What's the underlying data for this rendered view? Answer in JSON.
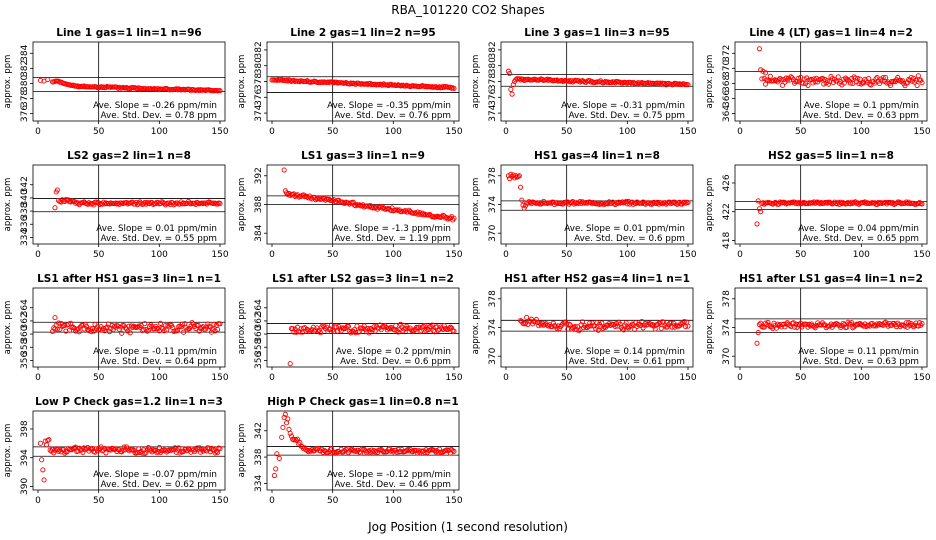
{
  "title": "RBA_101220  CO2 Shapes",
  "xlabel": "Jog Position (1 second resolution)",
  "ylabel": "approx. ppm",
  "colors": {
    "points": "#ff0000",
    "axes": "#000000",
    "background": "#ffffff"
  },
  "chart_data": [
    {
      "type": "scatter",
      "title": "Line 1 gas=1 lin=1 n=96",
      "xlim": [
        0,
        150
      ],
      "ylim": [
        375,
        385.5
      ],
      "yticks": [
        376,
        378,
        380,
        382,
        384
      ],
      "xticks": [
        0,
        50,
        100,
        150
      ],
      "hlines": [
        380.8,
        378.9
      ],
      "vline": 50,
      "slope": "Ave. Slope = -0.26 ppm/min",
      "stddev": "Ave. Std. Dev. = 0.78 ppm",
      "shape": {
        "start": 12,
        "x0": 0,
        "n": 150,
        "base": 379.7,
        "end": 379.0,
        "peak": 0.6,
        "peakAt": 16,
        "peakW": 8,
        "noise": 0.08,
        "lead": [
          [
            2,
            380.4
          ],
          [
            5,
            380.3
          ],
          [
            8,
            380.5
          ]
        ]
      }
    },
    {
      "type": "scatter",
      "title": "Line 2 gas=1 lin=2 n=95",
      "xlim": [
        0,
        150
      ],
      "ylim": [
        373,
        383
      ],
      "yticks": [
        374,
        376,
        378,
        380,
        382
      ],
      "xticks": [
        0,
        50,
        100,
        150
      ],
      "hlines": [
        378.6,
        376.6
      ],
      "vline": 50,
      "slope": "Ave. Slope = -0.35 ppm/min",
      "stddev": "Ave. Std. Dev. = 0.76 ppm",
      "shape": {
        "start": 0,
        "x0": 0,
        "n": 150,
        "base": 378.2,
        "end": 377.2,
        "peak": 0,
        "peakAt": 0,
        "peakW": 1,
        "noise": 0.08,
        "lead": []
      }
    },
    {
      "type": "scatter",
      "title": "Line 3 gas=1 lin=3 n=95",
      "xlim": [
        0,
        150
      ],
      "ylim": [
        373,
        383
      ],
      "yticks": [
        374,
        376,
        378,
        380,
        382
      ],
      "xticks": [
        0,
        50,
        100,
        150
      ],
      "hlines": [
        378.9,
        377.4
      ],
      "vline": 50,
      "slope": "Ave. Slope = -0.31 ppm/min",
      "stddev": "Ave. Std. Dev. = 0.75 ppm",
      "shape": {
        "start": 8,
        "x0": 0,
        "n": 150,
        "base": 378.3,
        "end": 377.6,
        "peak": 0,
        "peakAt": 0,
        "peakW": 1,
        "noise": 0.1,
        "lead": [
          [
            2,
            379.3
          ],
          [
            3,
            379.0
          ],
          [
            4,
            377.0
          ],
          [
            5,
            376.4
          ],
          [
            6,
            377.6
          ],
          [
            7,
            378.0
          ]
        ]
      }
    },
    {
      "type": "scatter",
      "title": "Line 4 (LT) gas=1 lin=4 n=2",
      "xlim": [
        0,
        150
      ],
      "ylim": [
        363,
        373.5
      ],
      "yticks": [
        364,
        366,
        368,
        370,
        372
      ],
      "xticks": [
        0,
        50,
        100,
        150
      ],
      "hlines": [
        369.6,
        367.2
      ],
      "vline": 50,
      "slope": "Ave. Slope = 0.1 ppm/min",
      "stddev": "Ave. Std. Dev. = 0.63 ppm",
      "shape": {
        "start": 20,
        "x0": 0,
        "n": 150,
        "base": 368.4,
        "end": 368.3,
        "peak": 0,
        "peakAt": 0,
        "peakW": 1,
        "noise": 0.45,
        "lead": [
          [
            16,
            372.6
          ],
          [
            17,
            369.8
          ],
          [
            18,
            368.6
          ],
          [
            19,
            369.6
          ],
          [
            21,
            369.4
          ]
        ]
      }
    },
    {
      "type": "scatter",
      "title": "LS2 gas=2 lin=1 n=8",
      "xlim": [
        0,
        150
      ],
      "ylim": [
        333,
        345
      ],
      "yticks": [
        334,
        336,
        338,
        340,
        342
      ],
      "xticks": [
        0,
        50,
        100,
        150
      ],
      "hlines": [
        339.9,
        337.9
      ],
      "vline": 50,
      "slope": "Ave. Slope = 0.01 ppm/min",
      "stddev": "Ave. Std. Dev. = 0.55 ppm",
      "shape": {
        "start": 18,
        "x0": 0,
        "n": 150,
        "base": 339.2,
        "end": 339.2,
        "peak": 0.4,
        "peakAt": 22,
        "peakW": 6,
        "noise": 0.18,
        "lead": [
          [
            14,
            338.5
          ],
          [
            15,
            340.9
          ],
          [
            16,
            341.2
          ],
          [
            17,
            339.6
          ]
        ]
      }
    },
    {
      "type": "scatter",
      "title": "LS1 gas=3 lin=1 n=9",
      "xlim": [
        0,
        150
      ],
      "ylim": [
        382.5,
        393.5
      ],
      "yticks": [
        384,
        388,
        392
      ],
      "xticks": [
        0,
        50,
        100,
        150
      ],
      "hlines": [
        389.2,
        388.0
      ],
      "vline": 50,
      "slope": "Ave. Slope = -1.3 ppm/min",
      "stddev": "Ave. Std. Dev. = 1.19 ppm",
      "shape": {
        "start": 12,
        "x0": 0,
        "n": 150,
        "base": 389.5,
        "end": 386.0,
        "peak": 0,
        "peakAt": 0,
        "peakW": 1,
        "noise": 0.18,
        "lead": [
          [
            10,
            392.8
          ],
          [
            11,
            389.9
          ]
        ]
      }
    },
    {
      "type": "scatter",
      "title": "HS1 gas=4 lin=1 n=8",
      "xlim": [
        0,
        150
      ],
      "ylim": [
        368.5,
        379.5
      ],
      "yticks": [
        370,
        374,
        378
      ],
      "xticks": [
        0,
        50,
        100,
        150
      ],
      "hlines": [
        374.5,
        373.2
      ],
      "vline": 50,
      "slope": "Ave. Slope = 0.01 ppm/min",
      "stddev": "Ave. Std. Dev. = 0.6 ppm",
      "shape": {
        "start": 17,
        "x0": 0,
        "n": 150,
        "base": 374.2,
        "end": 374.2,
        "peak": 0,
        "peakAt": 0,
        "peakW": 1,
        "noise": 0.15,
        "lead": [
          [
            2,
            378.0
          ],
          [
            3,
            377.6
          ],
          [
            4,
            378.2
          ],
          [
            5,
            377.9
          ],
          [
            6,
            378.1
          ],
          [
            7,
            377.7
          ],
          [
            8,
            378.0
          ],
          [
            9,
            377.8
          ],
          [
            10,
            377.9
          ],
          [
            11,
            378.0
          ],
          [
            12,
            376.4
          ],
          [
            13,
            374.6
          ],
          [
            14,
            373.9
          ],
          [
            15,
            373.5
          ],
          [
            16,
            373.8
          ]
        ]
      }
    },
    {
      "type": "scatter",
      "title": "HS2 gas=5 lin=1 n=8",
      "xlim": [
        0,
        150
      ],
      "ylim": [
        417.5,
        428.5
      ],
      "yticks": [
        418,
        422,
        426
      ],
      "xticks": [
        0,
        50,
        100,
        150
      ],
      "hlines": [
        423.4,
        422.3
      ],
      "vline": 50,
      "slope": "Ave. Slope = 0.04 ppm/min",
      "stddev": "Ave. Std. Dev. = 0.65 ppm",
      "shape": {
        "start": 18,
        "x0": 0,
        "n": 150,
        "base": 423.2,
        "end": 423.2,
        "peak": 0,
        "peakAt": 0,
        "peakW": 1,
        "noise": 0.13,
        "lead": [
          [
            14,
            420.3
          ],
          [
            15,
            423.5
          ],
          [
            16,
            422.4
          ],
          [
            17,
            422.0
          ]
        ]
      }
    },
    {
      "type": "scatter",
      "title": "LS1 after HS1 gas=3 lin=1 n=1",
      "xlim": [
        0,
        150
      ],
      "ylim": [
        355,
        367
      ],
      "yticks": [
        356,
        358,
        360,
        362,
        364
      ],
      "xticks": [
        0,
        50,
        100,
        150
      ],
      "hlines": [
        361.8,
        360.3
      ],
      "vline": 50,
      "slope": "Ave. Slope = -0.11 ppm/min",
      "stddev": "Ave. Std. Dev. = 0.64 ppm",
      "shape": {
        "start": 12,
        "x0": 0,
        "n": 150,
        "base": 361.0,
        "end": 360.9,
        "peak": 0,
        "peakAt": 0,
        "peakW": 1,
        "noise": 0.55,
        "lead": [
          [
            14,
            362.5
          ]
        ]
      }
    },
    {
      "type": "scatter",
      "title": "LS1 after LS2 gas=3 lin=1 n=2",
      "xlim": [
        0,
        150
      ],
      "ylim": [
        355,
        367
      ],
      "yticks": [
        356,
        358,
        360,
        362,
        364
      ],
      "xticks": [
        0,
        50,
        100,
        150
      ],
      "hlines": [
        361.6,
        360.1
      ],
      "vline": 50,
      "slope": "Ave. Slope = 0.2 ppm/min",
      "stddev": "Ave. Std. Dev. = 0.6 ppm",
      "shape": {
        "start": 16,
        "x0": 0,
        "n": 150,
        "base": 360.7,
        "end": 360.9,
        "peak": 0,
        "peakAt": 0,
        "peakW": 1,
        "noise": 0.45,
        "lead": [
          [
            15,
            355.5
          ]
        ]
      }
    },
    {
      "type": "scatter",
      "title": "HS1 after HS2 gas=4 lin=1 n=1",
      "xlim": [
        0,
        150
      ],
      "ylim": [
        368.5,
        379.5
      ],
      "yticks": [
        370,
        374,
        378
      ],
      "xticks": [
        0,
        50,
        100,
        150
      ],
      "hlines": [
        375.0,
        373.5
      ],
      "vline": 50,
      "slope": "Ave. Slope = 0.14 ppm/min",
      "stddev": "Ave. Std. Dev. = 0.61 ppm",
      "shape": {
        "start": 12,
        "x0": 0,
        "n": 150,
        "base": 374.2,
        "end": 374.3,
        "peak": 0.6,
        "peakAt": 20,
        "peakW": 10,
        "noise": 0.45,
        "lead": []
      }
    },
    {
      "type": "scatter",
      "title": "HS1 after LS1 gas=4 lin=1 n=2",
      "xlim": [
        0,
        150
      ],
      "ylim": [
        368.5,
        379.5
      ],
      "yticks": [
        370,
        374,
        378
      ],
      "xticks": [
        0,
        50,
        100,
        150
      ],
      "hlines": [
        375.2,
        373.3
      ],
      "vline": 50,
      "slope": "Ave. Slope = 0.11 ppm/min",
      "stddev": "Ave. Std. Dev. = 0.63 ppm",
      "shape": {
        "start": 16,
        "x0": 0,
        "n": 150,
        "base": 374.3,
        "end": 374.4,
        "peak": 0,
        "peakAt": 0,
        "peakW": 1,
        "noise": 0.3,
        "lead": [
          [
            14,
            371.8
          ],
          [
            15,
            373.3
          ]
        ]
      }
    },
    {
      "type": "scatter",
      "title": "Low P Check gas=1.2 lin=1 n=3",
      "xlim": [
        0,
        150
      ],
      "ylim": [
        389.5,
        400.5
      ],
      "yticks": [
        390,
        394,
        398
      ],
      "xticks": [
        0,
        50,
        100,
        150
      ],
      "hlines": [
        395.5,
        394.2
      ],
      "vline": 50,
      "slope": "Ave. Slope = -0.07 ppm/min",
      "stddev": "Ave. Std. Dev. = 0.62 ppm",
      "shape": {
        "start": 10,
        "x0": 0,
        "n": 150,
        "base": 395.1,
        "end": 395.0,
        "peak": 0,
        "peakAt": 0,
        "peakW": 1,
        "noise": 0.3,
        "lead": [
          [
            2,
            396.0
          ],
          [
            3,
            393.7
          ],
          [
            4,
            392.3
          ],
          [
            5,
            390.9
          ],
          [
            6,
            396.3
          ],
          [
            7,
            395.8
          ],
          [
            8,
            396.4
          ],
          [
            9,
            396.5
          ]
        ]
      }
    },
    {
      "type": "scatter",
      "title": "High P Check gas=1 lin=0.8 n=1",
      "xlim": [
        0,
        150
      ],
      "ylim": [
        333,
        345
      ],
      "yticks": [
        334,
        338,
        342
      ],
      "xticks": [
        0,
        50,
        100,
        150
      ],
      "hlines": [
        339.6,
        338.3
      ],
      "vline": 50,
      "slope": "Ave. Slope = -0.12 ppm/min",
      "stddev": "Ave. Std. Dev. = 0.46 ppm",
      "shape": {
        "start": 18,
        "x0": 0,
        "n": 150,
        "base": 339.0,
        "end": 338.9,
        "peak": 1.8,
        "peakAt": 18,
        "peakW": 6,
        "noise": 0.25,
        "lead": [
          [
            2,
            335.2
          ],
          [
            3,
            336.2
          ],
          [
            4,
            338.5
          ],
          [
            6,
            337.8
          ],
          [
            8,
            341.0
          ],
          [
            9,
            342.5
          ],
          [
            10,
            344.0
          ],
          [
            11,
            344.5
          ],
          [
            12,
            343.2
          ],
          [
            13,
            343.8
          ],
          [
            14,
            342.2
          ],
          [
            15,
            341.6
          ],
          [
            16,
            341.2
          ],
          [
            17,
            340.7
          ]
        ]
      }
    }
  ]
}
